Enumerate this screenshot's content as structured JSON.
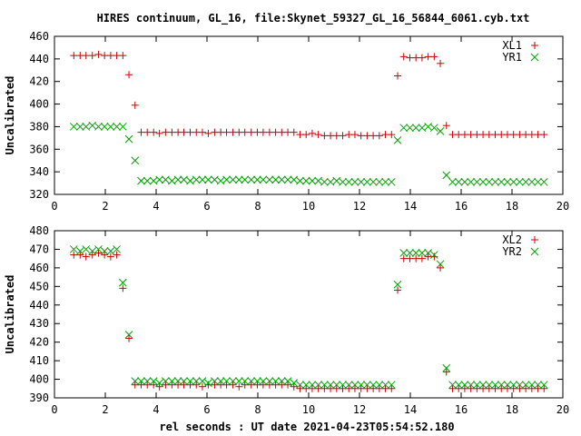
{
  "title": "HIRES continuum, GL_16, file:Skynet_59327_GL_16_56844_6061.cyb.txt",
  "xlabel": "rel seconds : UT date 2021-04-23T05:54:52.180",
  "colors": {
    "series_a": "#cc0000",
    "series_b": "#00a000"
  },
  "chart_data": [
    {
      "type": "scatter",
      "ylabel": "Uncalibrated",
      "xlim": [
        0,
        20
      ],
      "ylim": [
        320,
        460
      ],
      "xticks": [
        0,
        2,
        4,
        6,
        8,
        10,
        12,
        14,
        16,
        18,
        20
      ],
      "yticks": [
        320,
        340,
        360,
        380,
        400,
        420,
        440,
        460
      ],
      "legend_position": "top-right",
      "series": [
        {
          "name": "XL1",
          "marker": "plus",
          "color": "#cc0000",
          "x": [
            0.76,
            1.01,
            1.24,
            1.49,
            1.73,
            1.97,
            2.21,
            2.45,
            2.69,
            2.93,
            3.17,
            3.41,
            3.65,
            3.9,
            4.13,
            4.37,
            4.62,
            4.86,
            5.09,
            5.34,
            5.58,
            5.82,
            6.05,
            6.3,
            6.54,
            6.77,
            7.02,
            7.26,
            7.49,
            7.74,
            7.98,
            8.21,
            8.46,
            8.7,
            8.94,
            9.18,
            9.42,
            9.66,
            9.9,
            10.14,
            10.38,
            10.62,
            10.86,
            11.1,
            11.34,
            11.58,
            11.82,
            12.06,
            12.3,
            12.54,
            12.78,
            13.02,
            13.26,
            13.5,
            13.74,
            13.98,
            14.22,
            14.46,
            14.7,
            14.94,
            15.18,
            15.42,
            15.66,
            15.9,
            16.14,
            16.38,
            16.62,
            16.86,
            17.1,
            17.34,
            17.58,
            17.82,
            18.06,
            18.3,
            18.54,
            18.78,
            19.02,
            19.26
          ],
          "y": [
            443,
            443,
            443,
            443,
            444,
            443,
            443,
            443,
            443,
            426,
            399,
            375,
            375,
            375,
            374,
            375,
            375,
            375,
            375,
            375,
            375,
            375,
            374,
            375,
            375,
            375,
            375,
            375,
            375,
            375,
            375,
            375,
            375,
            375,
            375,
            375,
            375,
            373,
            373,
            374,
            373,
            372,
            372,
            372,
            372,
            373,
            373,
            372,
            372,
            372,
            372,
            373,
            373,
            425,
            442,
            441,
            441,
            441,
            442,
            442,
            436,
            381,
            373,
            373,
            373,
            373,
            373,
            373,
            373,
            373,
            373,
            373,
            373,
            373,
            373,
            373,
            373,
            373
          ]
        },
        {
          "name": "YR1",
          "marker": "cross",
          "color": "#00a000",
          "x": [
            0.76,
            1.01,
            1.24,
            1.49,
            1.73,
            1.97,
            2.21,
            2.45,
            2.69,
            2.93,
            3.17,
            3.41,
            3.65,
            3.9,
            4.13,
            4.37,
            4.62,
            4.86,
            5.09,
            5.34,
            5.58,
            5.82,
            6.05,
            6.3,
            6.54,
            6.77,
            7.02,
            7.26,
            7.49,
            7.74,
            7.98,
            8.21,
            8.46,
            8.7,
            8.94,
            9.18,
            9.42,
            9.66,
            9.9,
            10.14,
            10.38,
            10.62,
            10.86,
            11.1,
            11.34,
            11.58,
            11.82,
            12.06,
            12.3,
            12.54,
            12.78,
            13.02,
            13.26,
            13.5,
            13.74,
            13.98,
            14.22,
            14.46,
            14.7,
            14.94,
            15.18,
            15.42,
            15.66,
            15.9,
            16.14,
            16.38,
            16.62,
            16.86,
            17.1,
            17.34,
            17.58,
            17.82,
            18.06,
            18.3,
            18.54,
            18.78,
            19.02,
            19.26
          ],
          "y": [
            380,
            380,
            380,
            381,
            380,
            380,
            380,
            380,
            380,
            369,
            350,
            332,
            332,
            332,
            333,
            333,
            332,
            333,
            333,
            332,
            333,
            333,
            333,
            333,
            332,
            333,
            333,
            333,
            333,
            333,
            333,
            333,
            333,
            333,
            333,
            333,
            333,
            332,
            332,
            332,
            332,
            331,
            331,
            332,
            331,
            331,
            331,
            331,
            331,
            331,
            331,
            331,
            331,
            368,
            379,
            379,
            379,
            379,
            380,
            379,
            376,
            337,
            331,
            331,
            331,
            331,
            331,
            331,
            331,
            331,
            331,
            331,
            331,
            331,
            331,
            331,
            331,
            331
          ]
        }
      ]
    },
    {
      "type": "scatter",
      "ylabel": "Uncalibrated",
      "xlim": [
        0,
        20
      ],
      "ylim": [
        390,
        480
      ],
      "xticks": [
        0,
        2,
        4,
        6,
        8,
        10,
        12,
        14,
        16,
        18,
        20
      ],
      "yticks": [
        390,
        400,
        410,
        420,
        430,
        440,
        450,
        460,
        470,
        480
      ],
      "legend_position": "top-right",
      "series": [
        {
          "name": "XL2",
          "marker": "plus",
          "color": "#cc0000",
          "x": [
            0.76,
            1.01,
            1.24,
            1.49,
            1.73,
            1.97,
            2.21,
            2.45,
            2.69,
            2.93,
            3.17,
            3.41,
            3.65,
            3.9,
            4.13,
            4.37,
            4.62,
            4.86,
            5.09,
            5.34,
            5.58,
            5.82,
            6.05,
            6.3,
            6.54,
            6.77,
            7.02,
            7.26,
            7.49,
            7.74,
            7.98,
            8.21,
            8.46,
            8.7,
            8.94,
            9.18,
            9.42,
            9.66,
            9.9,
            10.14,
            10.38,
            10.62,
            10.86,
            11.1,
            11.34,
            11.58,
            11.82,
            12.06,
            12.3,
            12.54,
            12.78,
            13.02,
            13.26,
            13.5,
            13.74,
            13.98,
            14.22,
            14.46,
            14.7,
            14.94,
            15.18,
            15.42,
            15.66,
            15.9,
            16.14,
            16.38,
            16.62,
            16.86,
            17.1,
            17.34,
            17.58,
            17.82,
            18.06,
            18.3,
            18.54,
            18.78,
            19.02,
            19.26
          ],
          "y": [
            467,
            467,
            466,
            467,
            468,
            467,
            466,
            467,
            449,
            422,
            397,
            397,
            397,
            397,
            396,
            397,
            397,
            397,
            397,
            397,
            397,
            396,
            397,
            397,
            397,
            397,
            397,
            396,
            397,
            397,
            397,
            397,
            397,
            397,
            397,
            397,
            396,
            395,
            395,
            395,
            395,
            395,
            395,
            395,
            395,
            395,
            395,
            395,
            395,
            395,
            395,
            395,
            395,
            448,
            465,
            465,
            465,
            465,
            466,
            466,
            460,
            404,
            395,
            395,
            395,
            395,
            395,
            395,
            395,
            395,
            395,
            395,
            395,
            395,
            395,
            395,
            395,
            395
          ]
        },
        {
          "name": "YR2",
          "marker": "cross",
          "color": "#00a000",
          "x": [
            0.76,
            1.01,
            1.24,
            1.49,
            1.73,
            1.97,
            2.21,
            2.45,
            2.69,
            2.93,
            3.17,
            3.41,
            3.65,
            3.9,
            4.13,
            4.37,
            4.62,
            4.86,
            5.09,
            5.34,
            5.58,
            5.82,
            6.05,
            6.3,
            6.54,
            6.77,
            7.02,
            7.26,
            7.49,
            7.74,
            7.98,
            8.21,
            8.46,
            8.7,
            8.94,
            9.18,
            9.42,
            9.66,
            9.9,
            10.14,
            10.38,
            10.62,
            10.86,
            11.1,
            11.34,
            11.58,
            11.82,
            12.06,
            12.3,
            12.54,
            12.78,
            13.02,
            13.26,
            13.5,
            13.74,
            13.98,
            14.22,
            14.46,
            14.7,
            14.94,
            15.18,
            15.42,
            15.66,
            15.9,
            16.14,
            16.38,
            16.62,
            16.86,
            17.1,
            17.34,
            17.58,
            17.82,
            18.06,
            18.3,
            18.54,
            18.78,
            19.02,
            19.26
          ],
          "y": [
            470,
            469,
            470,
            469,
            470,
            469,
            469,
            470,
            452,
            424,
            399,
            399,
            399,
            399,
            398,
            399,
            399,
            399,
            399,
            399,
            399,
            399,
            398,
            399,
            399,
            399,
            399,
            399,
            399,
            399,
            399,
            399,
            399,
            399,
            399,
            399,
            398,
            397,
            397,
            397,
            397,
            397,
            397,
            397,
            397,
            397,
            397,
            397,
            397,
            397,
            397,
            397,
            397,
            451,
            468,
            468,
            468,
            468,
            468,
            467,
            462,
            406,
            397,
            397,
            397,
            397,
            397,
            397,
            397,
            397,
            397,
            397,
            397,
            397,
            397,
            397,
            397,
            397
          ]
        }
      ]
    }
  ]
}
